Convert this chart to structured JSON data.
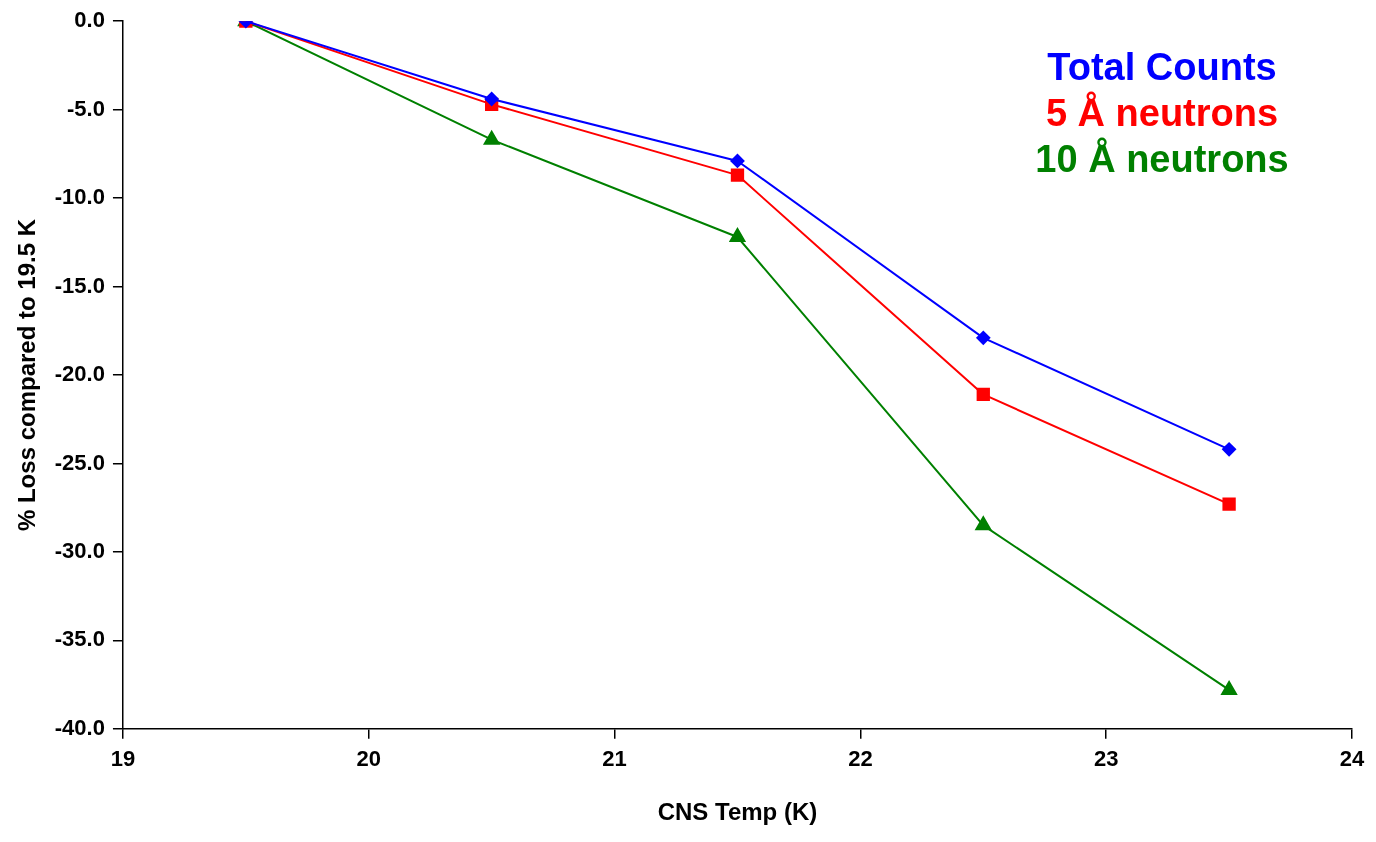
{
  "chart_data": {
    "type": "line",
    "xlabel": "CNS Temp (K)",
    "ylabel": "% Loss compared to 19.5 K",
    "x": [
      19.5,
      20.5,
      21.5,
      22.5,
      23.5
    ],
    "series": [
      {
        "name": "Total Counts",
        "color": "#0000ff",
        "marker": "diamond",
        "values": [
          0,
          -4.4,
          -7.9,
          -17.9,
          -24.2
        ]
      },
      {
        "name": "5 Å neutrons",
        "color": "#ff0000",
        "marker": "square",
        "values": [
          0,
          -4.7,
          -8.7,
          -21.1,
          -27.3
        ]
      },
      {
        "name": "10 Å neutrons",
        "color": "#008000",
        "marker": "triangle",
        "values": [
          0,
          -6.7,
          -12.2,
          -28.5,
          -37.8
        ]
      }
    ],
    "xlim": [
      19,
      24
    ],
    "xticks": [
      19,
      20,
      21,
      22,
      23,
      24
    ],
    "ylim": [
      -40,
      0
    ],
    "yticks": [
      {
        "value": -40,
        "label": "-40.0"
      },
      {
        "value": -35,
        "label": "-35.0"
      },
      {
        "value": -30,
        "label": "-30.0"
      },
      {
        "value": -25,
        "label": "-25.0"
      },
      {
        "value": -20,
        "label": "-20.0"
      },
      {
        "value": -15,
        "label": "-15.0"
      },
      {
        "value": -10,
        "label": "-10.0"
      },
      {
        "value": -5,
        "label": "-5.0"
      },
      {
        "value": 0,
        "label": "0.0"
      }
    ],
    "grid": false,
    "legend": "top right",
    "line_style": "solid"
  }
}
